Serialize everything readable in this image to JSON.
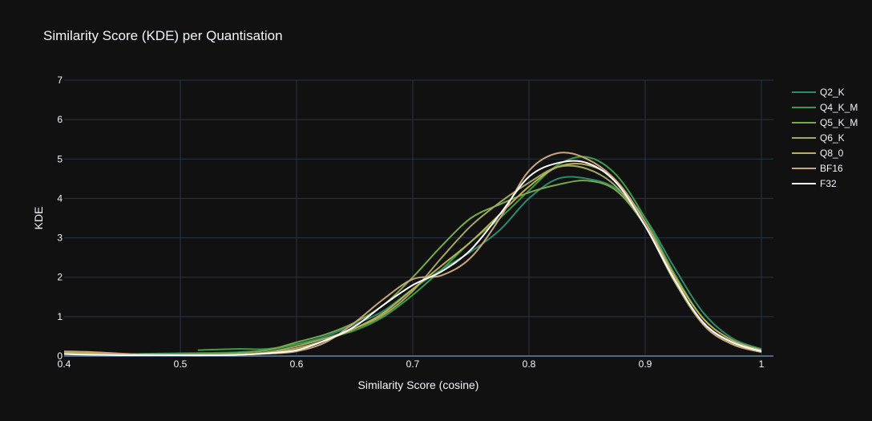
{
  "chart_data": {
    "type": "line",
    "title": "Similarity Score (KDE) per Quantisation",
    "xlabel": "Similarity Score (cosine)",
    "ylabel": "KDE",
    "xlim": [
      0.4,
      1.0
    ],
    "ylim": [
      0,
      7
    ],
    "xticks": [
      "0.4",
      "0.5",
      "0.6",
      "0.7",
      "0.8",
      "0.9",
      "1"
    ],
    "yticks": [
      "0",
      "1",
      "2",
      "3",
      "4",
      "5",
      "6",
      "7"
    ],
    "grid": true,
    "legend_position": "top-right",
    "x": [
      0.4,
      0.425,
      0.45,
      0.475,
      0.5,
      0.525,
      0.55,
      0.575,
      0.6,
      0.625,
      0.65,
      0.675,
      0.7,
      0.725,
      0.75,
      0.775,
      0.8,
      0.825,
      0.85,
      0.875,
      0.9,
      0.925,
      0.95,
      0.975,
      1.0
    ],
    "series": [
      {
        "name": "Q2_K",
        "color": "#2e8b6a",
        "values": [
          0.08,
          0.06,
          0.05,
          0.06,
          0.07,
          0.08,
          0.1,
          0.15,
          0.3,
          0.5,
          0.8,
          1.15,
          1.7,
          2.2,
          2.65,
          3.2,
          4.0,
          4.5,
          4.5,
          4.25,
          3.5,
          2.25,
          1.1,
          0.45,
          0.18
        ]
      },
      {
        "name": "Q4_K_M",
        "color": "#3c9c48",
        "values": [
          null,
          null,
          null,
          null,
          null,
          0.15,
          0.18,
          0.18,
          0.3,
          0.45,
          0.65,
          1.0,
          1.55,
          2.2,
          2.9,
          3.5,
          4.2,
          4.85,
          5.05,
          4.6,
          3.5,
          2.1,
          0.95,
          0.4,
          0.15
        ]
      },
      {
        "name": "Q5_K_M",
        "color": "#78a94a",
        "values": [
          0.08,
          0.06,
          0.05,
          0.05,
          0.05,
          0.06,
          0.08,
          0.15,
          0.35,
          0.55,
          0.85,
          1.3,
          2.0,
          2.8,
          3.5,
          3.85,
          4.15,
          4.35,
          4.45,
          4.2,
          3.3,
          1.95,
          0.85,
          0.3,
          0.1
        ]
      },
      {
        "name": "Q6_K",
        "color": "#a3a862",
        "values": [
          0.05,
          0.04,
          0.03,
          0.02,
          0.02,
          0.02,
          0.04,
          0.1,
          0.25,
          0.45,
          0.7,
          1.05,
          1.65,
          2.5,
          3.3,
          3.9,
          4.4,
          4.8,
          4.75,
          4.3,
          3.3,
          1.9,
          0.8,
          0.3,
          0.1
        ]
      },
      {
        "name": "Q8_0",
        "color": "#bcb055",
        "values": [
          0.1,
          0.08,
          0.05,
          0.03,
          0.02,
          0.02,
          0.03,
          0.08,
          0.2,
          0.4,
          0.7,
          1.1,
          1.7,
          2.3,
          2.9,
          3.6,
          4.3,
          4.8,
          4.85,
          4.45,
          3.4,
          2.05,
          0.95,
          0.4,
          0.15
        ]
      },
      {
        "name": "BF16",
        "color": "#c9a57c",
        "values": [
          0.12,
          0.1,
          0.06,
          0.03,
          0.02,
          0.02,
          0.03,
          0.06,
          0.12,
          0.35,
          0.85,
          1.45,
          1.95,
          2.05,
          2.5,
          3.5,
          4.7,
          5.15,
          5.0,
          4.45,
          3.4,
          2.0,
          0.8,
          0.3,
          0.1
        ]
      },
      {
        "name": "F32",
        "color": "#ffffff",
        "values": [
          0.05,
          0.03,
          0.02,
          0.02,
          0.02,
          0.02,
          0.03,
          0.07,
          0.15,
          0.4,
          0.75,
          1.3,
          1.8,
          2.15,
          2.7,
          3.6,
          4.55,
          4.9,
          4.9,
          4.4,
          3.3,
          1.95,
          0.85,
          0.35,
          0.12
        ]
      }
    ]
  }
}
